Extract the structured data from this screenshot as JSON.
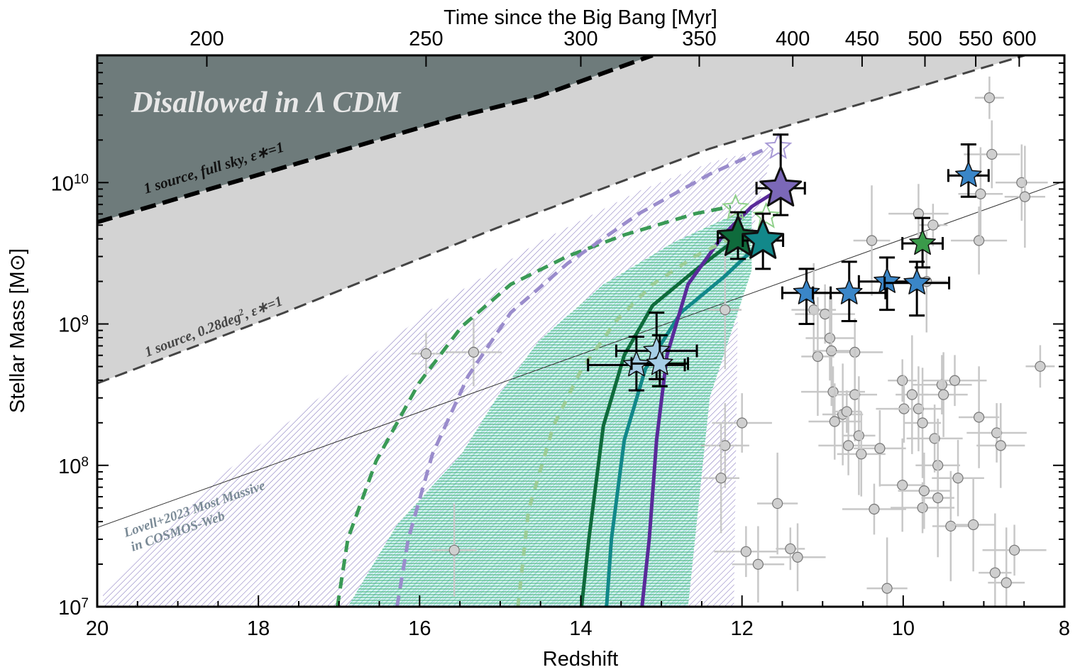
{
  "chart_data": {
    "type": "scatter",
    "xlabel": "Redshift",
    "ylabel": "Stellar Mass [M⊙]",
    "top_xlabel": "Time since the Big Bang [Myr]",
    "xlim": [
      20,
      8
    ],
    "ylim_log10": [
      7,
      10.9
    ],
    "yscale": "log",
    "x_ticks": [
      20,
      18,
      16,
      14,
      12,
      10,
      8
    ],
    "y_ticks": [
      {
        "exp": 7,
        "label": "10",
        "sup": "7"
      },
      {
        "exp": 8,
        "label": "10",
        "sup": "8"
      },
      {
        "exp": 9,
        "label": "10",
        "sup": "9"
      },
      {
        "exp": 10,
        "label": "10",
        "sup": "10"
      }
    ],
    "top_ticks": [
      {
        "label": "200",
        "z": 18.64
      },
      {
        "label": "250",
        "z": 15.92
      },
      {
        "label": "300",
        "z": 14.0
      },
      {
        "label": "350",
        "z": 12.53
      },
      {
        "label": "400",
        "z": 11.37
      },
      {
        "label": "450",
        "z": 10.51
      },
      {
        "label": "500",
        "z": 9.73
      },
      {
        "label": "550",
        "z": 9.1
      },
      {
        "label": "600",
        "z": 8.56
      }
    ],
    "annotations": {
      "disallowed": "Disallowed in Λ CDM",
      "full_sky": "1 source, full sky, ε∗=1",
      "survey_prefix": "1 source, 0.28deg",
      "survey_sup": "2",
      "survey_suffix": ", ε∗=1",
      "lovell_1": "Lovell+2023 Most Massive",
      "lovell_2": "in COSMOS-Web"
    },
    "limits": {
      "full_sky": [
        [
          20,
          9.72
        ],
        [
          18.57,
          9.96
        ],
        [
          17.07,
          10.21
        ],
        [
          15.57,
          10.46
        ],
        [
          14.52,
          10.61
        ],
        [
          13.11,
          10.9
        ]
      ],
      "survey_028deg2": [
        [
          20,
          8.58
        ],
        [
          17.68,
          9.08
        ],
        [
          15.04,
          9.68
        ],
        [
          12.4,
          10.24
        ],
        [
          8.49,
          10.9
        ]
      ],
      "lovell2023": [
        [
          20,
          7.56
        ],
        [
          8,
          10.01
        ]
      ]
    },
    "bands": {
      "purple_hatched": [
        [
          19.93,
          7.0
        ],
        [
          19.93,
          7.1
        ],
        [
          18.57,
          7.88
        ],
        [
          17.24,
          8.48
        ],
        [
          15.92,
          9.08
        ],
        [
          14.52,
          9.58
        ],
        [
          13.28,
          9.94
        ],
        [
          12.4,
          10.14
        ],
        [
          11.61,
          10.26
        ],
        [
          11.88,
          9.63
        ],
        [
          12.05,
          9.18
        ],
        [
          12.1,
          7.0
        ]
      ],
      "teal_green": [
        [
          16.89,
          7.0
        ],
        [
          16.28,
          7.58
        ],
        [
          15.48,
          8.08
        ],
        [
          15.04,
          8.48
        ],
        [
          14.52,
          8.88
        ],
        [
          13.72,
          9.28
        ],
        [
          12.84,
          9.58
        ],
        [
          11.88,
          9.83
        ],
        [
          11.88,
          9.38
        ],
        [
          12.4,
          8.48
        ],
        [
          12.67,
          7.0
        ]
      ]
    },
    "curves": [
      {
        "name": "dark-green-solid",
        "color": "#0f6b3c",
        "style": "solid",
        "points": [
          [
            13.99,
            7.0
          ],
          [
            13.9,
            7.48
          ],
          [
            13.72,
            8.28
          ],
          [
            13.46,
            8.78
          ],
          [
            13.11,
            9.13
          ],
          [
            12.58,
            9.38
          ],
          [
            12.05,
            9.61
          ]
        ]
      },
      {
        "name": "teal-solid",
        "color": "#12888a",
        "style": "solid",
        "points": [
          [
            13.68,
            7.0
          ],
          [
            13.62,
            7.48
          ],
          [
            13.46,
            8.18
          ],
          [
            13.2,
            8.68
          ],
          [
            12.76,
            9.08
          ],
          [
            12.23,
            9.33
          ],
          [
            11.74,
            9.59
          ]
        ]
      },
      {
        "name": "purple-solid",
        "color": "#5a2a9a",
        "style": "solid",
        "points": [
          [
            13.24,
            7.0
          ],
          [
            13.15,
            7.48
          ],
          [
            13.06,
            8.18
          ],
          [
            12.93,
            8.78
          ],
          [
            12.67,
            9.28
          ],
          [
            12.23,
            9.63
          ],
          [
            11.88,
            9.83
          ],
          [
            11.52,
            9.96
          ]
        ]
      },
      {
        "name": "green-dashed",
        "color": "#3a9a56",
        "style": "dashed",
        "points": [
          [
            17.02,
            7.0
          ],
          [
            16.89,
            7.48
          ],
          [
            16.54,
            8.03
          ],
          [
            16.01,
            8.58
          ],
          [
            15.48,
            8.98
          ],
          [
            14.87,
            9.28
          ],
          [
            14.16,
            9.48
          ],
          [
            13.46,
            9.63
          ],
          [
            12.58,
            9.78
          ],
          [
            12.14,
            9.83
          ]
        ]
      },
      {
        "name": "lavender-dashed",
        "color": "#9a8ccc",
        "style": "dashed",
        "points": [
          [
            16.28,
            7.0
          ],
          [
            16.14,
            7.48
          ],
          [
            15.84,
            8.08
          ],
          [
            15.4,
            8.63
          ],
          [
            14.87,
            9.08
          ],
          [
            14.16,
            9.43
          ],
          [
            13.28,
            9.78
          ],
          [
            12.4,
            10.06
          ],
          [
            11.7,
            10.24
          ]
        ]
      },
      {
        "name": "light-green-dotted",
        "color": "#9ccc96",
        "style": "dotted",
        "points": [
          [
            14.78,
            7.0
          ],
          [
            14.65,
            7.68
          ],
          [
            14.34,
            8.28
          ],
          [
            13.99,
            8.68
          ],
          [
            13.55,
            9.03
          ],
          [
            13.11,
            9.28
          ],
          [
            12.58,
            9.48
          ],
          [
            12.05,
            9.63
          ]
        ]
      }
    ],
    "stars": [
      {
        "z": 11.52,
        "logM": 9.96,
        "xerr": 0.3,
        "yerr_up": 0.38,
        "yerr_lo": 0.19,
        "color": "#7b68b8",
        "size": "large"
      },
      {
        "z": 12.05,
        "logM": 9.61,
        "xerr": 0.25,
        "yerr_up": 0.18,
        "yerr_lo": 0.15,
        "color": "#0f6b3c",
        "size": "large"
      },
      {
        "z": 11.74,
        "logM": 9.59,
        "xerr": 0.25,
        "yerr_up": 0.19,
        "yerr_lo": 0.2,
        "color": "#12888a",
        "size": "large"
      },
      {
        "z": 13.31,
        "logM": 8.71,
        "xerr": 0.6,
        "yerr_up": 0.2,
        "yerr_lo": 0.18,
        "color": "#a6cde6",
        "size": "small"
      },
      {
        "z": 13.06,
        "logM": 8.81,
        "xerr": 0.5,
        "yerr_up": 0.27,
        "yerr_lo": 0.2,
        "color": "#a6cde6",
        "size": "small"
      },
      {
        "z": 13.02,
        "logM": 8.72,
        "xerr": 0.35,
        "yerr_up": 0.2,
        "yerr_lo": 0.16,
        "color": "#a6cde6",
        "size": "small"
      },
      {
        "z": 11.2,
        "logM": 9.22,
        "xerr": 0.3,
        "yerr_up": 0.17,
        "yerr_lo": 0.22,
        "color": "#3a86c8",
        "size": "small"
      },
      {
        "z": 10.67,
        "logM": 9.22,
        "xerr": 0.45,
        "yerr_up": 0.22,
        "yerr_lo": 0.2,
        "color": "#3a86c8",
        "size": "small"
      },
      {
        "z": 10.2,
        "logM": 9.3,
        "xerr": 0.35,
        "yerr_up": 0.17,
        "yerr_lo": 0.2,
        "color": "#3a86c8",
        "size": "small"
      },
      {
        "z": 9.83,
        "logM": 9.29,
        "xerr": 0.4,
        "yerr_up": 0.15,
        "yerr_lo": 0.23,
        "color": "#3a86c8",
        "size": "small"
      },
      {
        "z": 9.19,
        "logM": 10.05,
        "xerr": 0.25,
        "yerr_up": 0.22,
        "yerr_lo": 0.15,
        "color": "#3a86c8",
        "size": "small"
      },
      {
        "z": 9.76,
        "logM": 9.57,
        "xerr": 0.25,
        "yerr_up": 0.18,
        "yerr_lo": 0.17,
        "color": "#3a9a4a",
        "size": "small"
      }
    ],
    "hollow_stars": [
      {
        "z": 11.55,
        "logM": 10.25,
        "color": "#a89ad6"
      },
      {
        "z": 12.08,
        "logM": 9.82,
        "color": "#8fd08a"
      },
      {
        "z": 11.7,
        "logM": 9.76,
        "color": "#8fd08a"
      }
    ],
    "literature_points": {
      "xerr": 0.3,
      "yerr": 0.25,
      "color": "#c8c8c8",
      "points": [
        [
          15.92,
          8.79
        ],
        [
          15.33,
          8.8
        ],
        [
          15.57,
          7.4
        ],
        [
          12.21,
          9.1
        ],
        [
          12.0,
          8.3
        ],
        [
          12.21,
          8.14
        ],
        [
          12.26,
          7.91
        ],
        [
          11.95,
          7.39
        ],
        [
          11.8,
          7.3
        ],
        [
          11.56,
          7.73
        ],
        [
          11.4,
          7.41
        ],
        [
          11.31,
          7.35
        ],
        [
          11.11,
          9.1
        ],
        [
          11.06,
          8.77
        ],
        [
          10.97,
          9.07
        ],
        [
          10.91,
          8.9
        ],
        [
          10.89,
          8.81
        ],
        [
          10.87,
          8.52
        ],
        [
          10.85,
          8.31
        ],
        [
          10.75,
          8.36
        ],
        [
          10.7,
          8.38
        ],
        [
          10.6,
          8.8
        ],
        [
          10.6,
          8.5
        ],
        [
          10.55,
          8.21
        ],
        [
          10.68,
          8.14
        ],
        [
          10.52,
          8.08
        ],
        [
          10.39,
          9.59
        ],
        [
          10.36,
          7.69
        ],
        [
          10.29,
          8.12
        ],
        [
          10.2,
          7.13
        ],
        [
          10.01,
          8.6
        ],
        [
          9.99,
          8.4
        ],
        [
          10.01,
          7.86
        ],
        [
          9.89,
          8.5
        ],
        [
          9.81,
          9.78
        ],
        [
          9.81,
          8.4
        ],
        [
          9.76,
          8.3
        ],
        [
          9.76,
          7.7
        ],
        [
          9.74,
          7.82
        ],
        [
          9.71,
          9.3
        ],
        [
          9.63,
          9.7
        ],
        [
          9.61,
          8.19
        ],
        [
          9.57,
          8.0
        ],
        [
          9.57,
          7.77
        ],
        [
          9.52,
          8.57
        ],
        [
          9.5,
          8.5
        ],
        [
          9.41,
          7.57
        ],
        [
          9.36,
          8.6
        ],
        [
          9.32,
          7.91
        ],
        [
          9.06,
          8.34
        ],
        [
          8.93,
          10.6
        ],
        [
          8.9,
          10.2
        ],
        [
          9.13,
          7.58
        ],
        [
          8.86,
          7.24
        ],
        [
          8.84,
          8.23
        ],
        [
          8.79,
          8.14
        ],
        [
          8.72,
          7.17
        ],
        [
          8.62,
          7.4
        ],
        [
          8.53,
          10.0
        ],
        [
          8.49,
          9.9
        ],
        [
          8.3,
          8.7
        ],
        [
          9.06,
          9.59
        ],
        [
          9.04,
          9.92
        ]
      ]
    },
    "colors": {
      "disallowed": "#6e7b7b",
      "survey_region": "#d3d3d3",
      "hatch_purple": "#7a6bb8",
      "hatch_teal": "#5fcfcf",
      "hatch_green": "#3fae6a"
    }
  }
}
